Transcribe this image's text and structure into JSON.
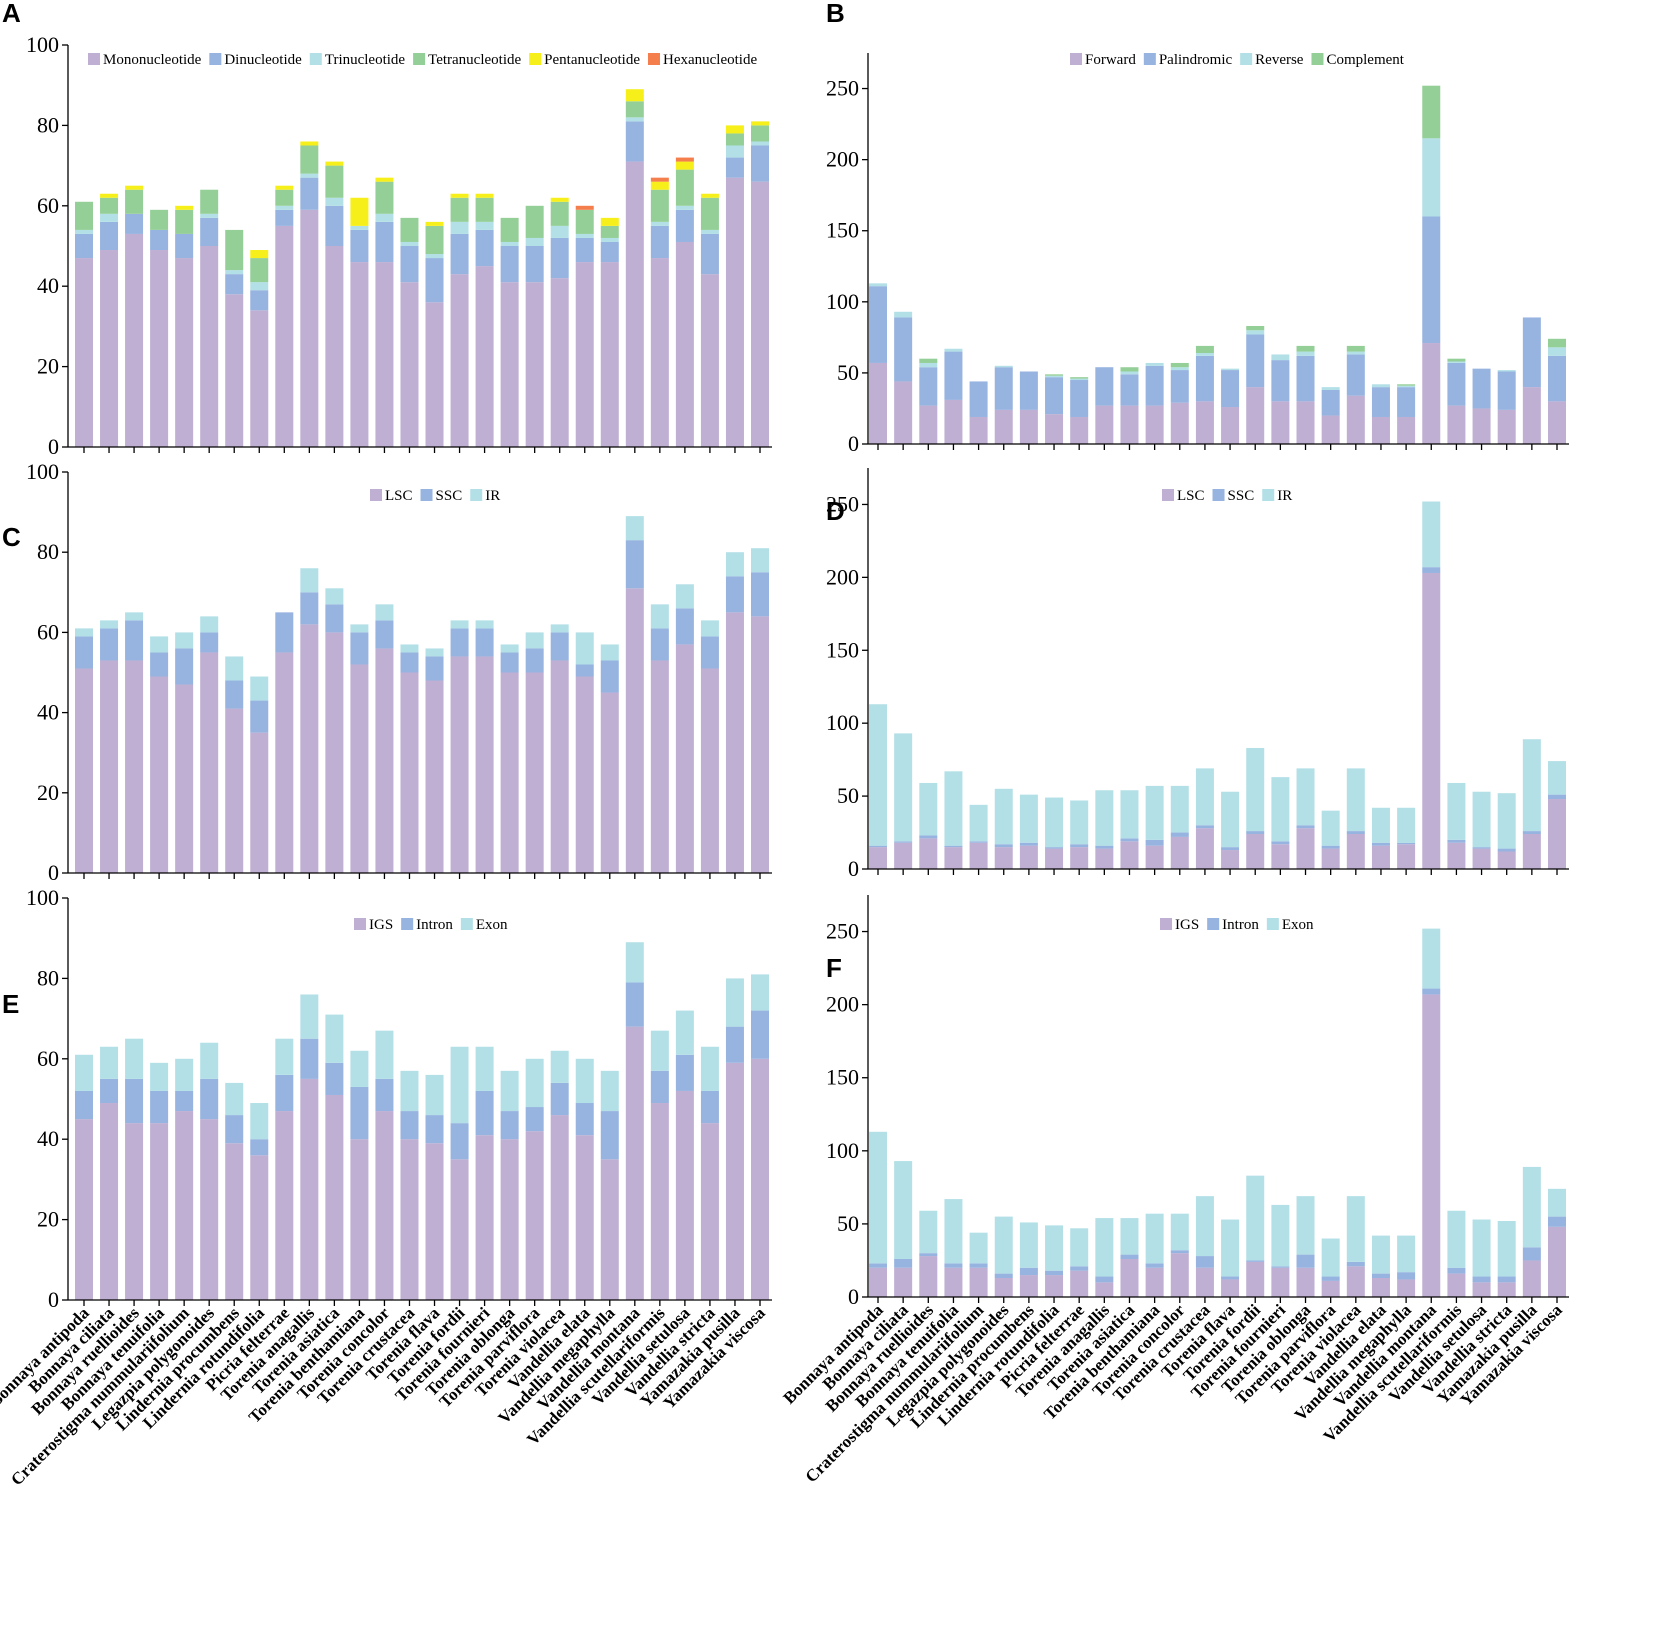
{
  "categories": [
    "Bonnaya antipoda",
    "Bonnaya ciliata",
    "Bonnaya ruellioides",
    "Bonnaya tenuifolia",
    "Craterostigma nummulariifolium",
    "Legazpia polygonoides",
    "Lindernia procumbens",
    "Lindernia rotundifolia",
    "Picria felterrae",
    "Torenia anagallis",
    "Torenia asiatica",
    "Torenia benthamiana",
    "Torenia concolor",
    "Torenia crustacea",
    "Torenia flava",
    "Torenia fordii",
    "Torenia fournieri",
    "Torenia oblonga",
    "Torenia parviflora",
    "Torenia violacea",
    "Vandellia elata",
    "Vandellia megaphylla",
    "Vandellia montana",
    "Vandellia scutellariformis",
    "Vandellia setulosa",
    "Vandellia stricta",
    "Yamazakia pusilla",
    "Yamazakia viscosa"
  ],
  "colors": {
    "purple": "#bfafd3",
    "blue": "#97b3e0",
    "cyan": "#b3e0e7",
    "green": "#95cf98",
    "yellow": "#f7ef19",
    "orange": "#f57e4d"
  },
  "chart_data": [
    {
      "id": "A",
      "type": "bar",
      "stacked": true,
      "ylim": [
        0,
        100
      ],
      "yticks": [
        0,
        20,
        40,
        60,
        80,
        100
      ],
      "legend_position": "top",
      "series": [
        {
          "name": "Mononucleotide",
          "color": "#bfafd3",
          "values": [
            47,
            49,
            53,
            49,
            47,
            50,
            38,
            34,
            55,
            59,
            50,
            46,
            46,
            41,
            36,
            43,
            45,
            41,
            41,
            42,
            46,
            46,
            71,
            47,
            51,
            43,
            67,
            66
          ]
        },
        {
          "name": "Dinucleotide",
          "color": "#97b3e0",
          "values": [
            6,
            7,
            5,
            5,
            6,
            7,
            5,
            5,
            4,
            8,
            10,
            8,
            10,
            9,
            11,
            10,
            9,
            9,
            9,
            10,
            6,
            5,
            10,
            8,
            8,
            10,
            5,
            9
          ]
        },
        {
          "name": "Trinucleotide",
          "color": "#b3e0e7",
          "values": [
            1,
            2,
            0,
            0,
            0,
            1,
            1,
            2,
            1,
            1,
            2,
            1,
            2,
            1,
            1,
            3,
            2,
            1,
            2,
            3,
            1,
            1,
            1,
            1,
            1,
            1,
            3,
            1
          ]
        },
        {
          "name": "Tetranucleotide",
          "color": "#95cf98",
          "values": [
            7,
            4,
            6,
            5,
            6,
            6,
            10,
            6,
            4,
            7,
            8,
            0,
            8,
            6,
            7,
            6,
            6,
            6,
            8,
            6,
            6,
            3,
            4,
            8,
            9,
            8,
            3,
            4
          ]
        },
        {
          "name": "Pentanucleotide",
          "color": "#f7ef19",
          "values": [
            0,
            1,
            1,
            0,
            1,
            0,
            0,
            2,
            1,
            1,
            1,
            7,
            1,
            0,
            1,
            1,
            1,
            0,
            0,
            1,
            0,
            2,
            3,
            2,
            2,
            1,
            2,
            1
          ]
        },
        {
          "name": "Hexanucleotide",
          "color": "#f57e4d",
          "values": [
            0,
            0,
            0,
            0,
            0,
            0,
            0,
            0,
            0,
            0,
            0,
            0,
            0,
            0,
            0,
            0,
            0,
            0,
            0,
            0,
            1,
            0,
            0,
            1,
            1,
            0,
            0,
            0
          ]
        }
      ]
    },
    {
      "id": "B",
      "type": "bar",
      "stacked": true,
      "ylim": [
        0,
        275
      ],
      "yticks": [
        0,
        50,
        100,
        150,
        200,
        250
      ],
      "legend_position": "top",
      "series": [
        {
          "name": "Forward",
          "color": "#bfafd3",
          "values": [
            57,
            44,
            27,
            31,
            19,
            24,
            24,
            21,
            19,
            27,
            27,
            27,
            29,
            30,
            26,
            40,
            30,
            30,
            20,
            34,
            19,
            19,
            71,
            27,
            25,
            24,
            40,
            30
          ]
        },
        {
          "name": "Palindromic",
          "color": "#97b3e0",
          "values": [
            54,
            45,
            27,
            34,
            25,
            30,
            27,
            26,
            26,
            27,
            22,
            28,
            23,
            32,
            26,
            37,
            29,
            32,
            18,
            29,
            21,
            21,
            89,
            30,
            28,
            27,
            49,
            32
          ]
        },
        {
          "name": "Reverse",
          "color": "#b3e0e7",
          "values": [
            2,
            4,
            3,
            2,
            0,
            1,
            0,
            1,
            1,
            0,
            2,
            2,
            2,
            2,
            1,
            3,
            4,
            3,
            2,
            2,
            2,
            1,
            55,
            1,
            0,
            1,
            0,
            6
          ]
        },
        {
          "name": "Complement",
          "color": "#95cf98",
          "values": [
            0,
            0,
            3,
            0,
            0,
            0,
            0,
            1,
            1,
            0,
            3,
            0,
            3,
            5,
            0,
            3,
            0,
            4,
            0,
            4,
            0,
            1,
            37,
            2,
            0,
            0,
            0,
            6
          ]
        }
      ]
    },
    {
      "id": "C",
      "type": "bar",
      "stacked": true,
      "ylim": [
        0,
        100
      ],
      "yticks": [
        0,
        20,
        40,
        60,
        80,
        100
      ],
      "legend_position": "top",
      "series": [
        {
          "name": "LSC",
          "color": "#bfafd3",
          "values": [
            51,
            53,
            53,
            49,
            47,
            55,
            41,
            35,
            55,
            62,
            60,
            52,
            56,
            50,
            48,
            54,
            54,
            50,
            50,
            53,
            49,
            45,
            71,
            53,
            57,
            51,
            65,
            64
          ]
        },
        {
          "name": "SSC",
          "color": "#97b3e0",
          "values": [
            8,
            8,
            10,
            6,
            9,
            5,
            7,
            8,
            10,
            8,
            7,
            8,
            7,
            5,
            6,
            7,
            7,
            5,
            6,
            7,
            3,
            8,
            12,
            8,
            9,
            8,
            9,
            11
          ]
        },
        {
          "name": "IR",
          "color": "#b3e0e7",
          "values": [
            2,
            2,
            2,
            4,
            4,
            4,
            6,
            6,
            0,
            6,
            4,
            2,
            4,
            2,
            2,
            2,
            2,
            2,
            4,
            2,
            8,
            4,
            6,
            6,
            6,
            4,
            6,
            6
          ]
        }
      ]
    },
    {
      "id": "D",
      "type": "bar",
      "stacked": true,
      "ylim": [
        0,
        275
      ],
      "yticks": [
        0,
        50,
        100,
        150,
        200,
        250
      ],
      "legend_position": "top",
      "series": [
        {
          "name": "LSC",
          "color": "#bfafd3",
          "values": [
            15,
            18,
            21,
            15,
            18,
            15,
            16,
            14,
            15,
            14,
            19,
            16,
            22,
            28,
            13,
            24,
            17,
            28,
            14,
            24,
            16,
            17,
            203,
            18,
            14,
            12,
            24,
            48
          ]
        },
        {
          "name": "SSC",
          "color": "#97b3e0",
          "values": [
            1,
            1,
            2,
            1,
            1,
            2,
            2,
            1,
            2,
            2,
            2,
            4,
            3,
            2,
            2,
            2,
            2,
            2,
            2,
            2,
            2,
            1,
            4,
            2,
            1,
            2,
            2,
            3
          ]
        },
        {
          "name": "IR",
          "color": "#b3e0e7",
          "values": [
            97,
            74,
            36,
            51,
            25,
            38,
            33,
            34,
            30,
            38,
            33,
            37,
            32,
            39,
            38,
            57,
            44,
            39,
            24,
            43,
            24,
            24,
            45,
            39,
            38,
            38,
            63,
            23
          ]
        }
      ]
    },
    {
      "id": "E",
      "type": "bar",
      "stacked": true,
      "ylim": [
        0,
        100
      ],
      "yticks": [
        0,
        20,
        40,
        60,
        80,
        100
      ],
      "legend_position": "top",
      "series": [
        {
          "name": "IGS",
          "color": "#bfafd3",
          "values": [
            45,
            49,
            44,
            44,
            47,
            45,
            39,
            36,
            47,
            55,
            51,
            40,
            47,
            40,
            39,
            35,
            41,
            40,
            42,
            46,
            41,
            35,
            68,
            49,
            52,
            44,
            59,
            60
          ]
        },
        {
          "name": "Intron",
          "color": "#97b3e0",
          "values": [
            7,
            6,
            11,
            8,
            5,
            10,
            7,
            4,
            9,
            10,
            8,
            13,
            8,
            7,
            7,
            9,
            11,
            7,
            6,
            8,
            8,
            12,
            11,
            8,
            9,
            8,
            9,
            12
          ]
        },
        {
          "name": "Exon",
          "color": "#b3e0e7",
          "values": [
            9,
            8,
            10,
            7,
            8,
            9,
            8,
            9,
            9,
            11,
            12,
            9,
            12,
            10,
            10,
            19,
            11,
            10,
            12,
            8,
            11,
            10,
            10,
            10,
            11,
            11,
            12,
            9
          ]
        }
      ]
    },
    {
      "id": "F",
      "type": "bar",
      "stacked": true,
      "ylim": [
        0,
        275
      ],
      "yticks": [
        0,
        50,
        100,
        150,
        200,
        250
      ],
      "legend_position": "top",
      "series": [
        {
          "name": "IGS",
          "color": "#bfafd3",
          "values": [
            20,
            20,
            28,
            20,
            20,
            13,
            15,
            15,
            18,
            10,
            26,
            20,
            30,
            20,
            12,
            24,
            20,
            20,
            11,
            21,
            13,
            12,
            207,
            16,
            10,
            10,
            25,
            48
          ]
        },
        {
          "name": "Intron",
          "color": "#97b3e0",
          "values": [
            3,
            6,
            2,
            3,
            3,
            3,
            5,
            3,
            3,
            4,
            3,
            3,
            2,
            8,
            2,
            1,
            1,
            9,
            3,
            3,
            3,
            5,
            4,
            4,
            4,
            4,
            9,
            7
          ]
        },
        {
          "name": "Exon",
          "color": "#b3e0e7",
          "values": [
            90,
            67,
            29,
            44,
            21,
            39,
            31,
            31,
            26,
            40,
            25,
            34,
            25,
            41,
            39,
            58,
            42,
            40,
            26,
            45,
            26,
            25,
            41,
            39,
            39,
            38,
            55,
            19
          ]
        }
      ]
    }
  ]
}
